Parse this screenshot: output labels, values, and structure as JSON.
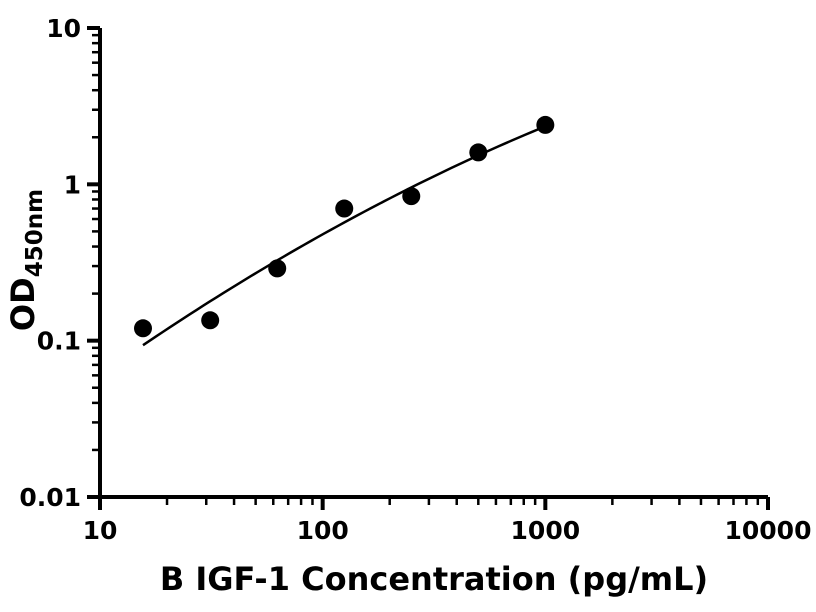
{
  "chart_data": {
    "type": "scatter",
    "title": "",
    "xlabel": "B IGF-1 Concentration (pg/mL)",
    "ylabel_main": "OD",
    "ylabel_sub": "450nm",
    "x_scale": "log",
    "y_scale": "log",
    "xlim": [
      10,
      10000
    ],
    "ylim": [
      0.01,
      10
    ],
    "x_major_ticks": [
      10,
      100,
      1000,
      10000
    ],
    "x_tick_labels": [
      "10",
      "100",
      "1000",
      "10000"
    ],
    "x_minor_decades": [
      10,
      100,
      1000
    ],
    "y_major_ticks": [
      0.01,
      0.1,
      1,
      10
    ],
    "y_tick_labels": [
      "0.01",
      "0.1",
      "1",
      "10"
    ],
    "y_minor_decades": [
      0.01,
      0.1,
      1
    ],
    "points": {
      "x": [
        15.6,
        31.25,
        62.5,
        125,
        250,
        500,
        1000
      ],
      "y": [
        0.12,
        0.135,
        0.29,
        0.7,
        0.84,
        1.6,
        2.4
      ]
    },
    "trendline": {
      "type": "quadratic_log10",
      "a": -2.3254,
      "b": 1.2105,
      "c": -0.1039,
      "x_range": [
        15.6,
        1000
      ]
    },
    "marker_size_px": 9,
    "grid": false,
    "legend": "none",
    "colors": {
      "marker": "#000000",
      "line": "#000000",
      "axis": "#000000",
      "text": "#000000",
      "background": "#ffffff"
    }
  }
}
